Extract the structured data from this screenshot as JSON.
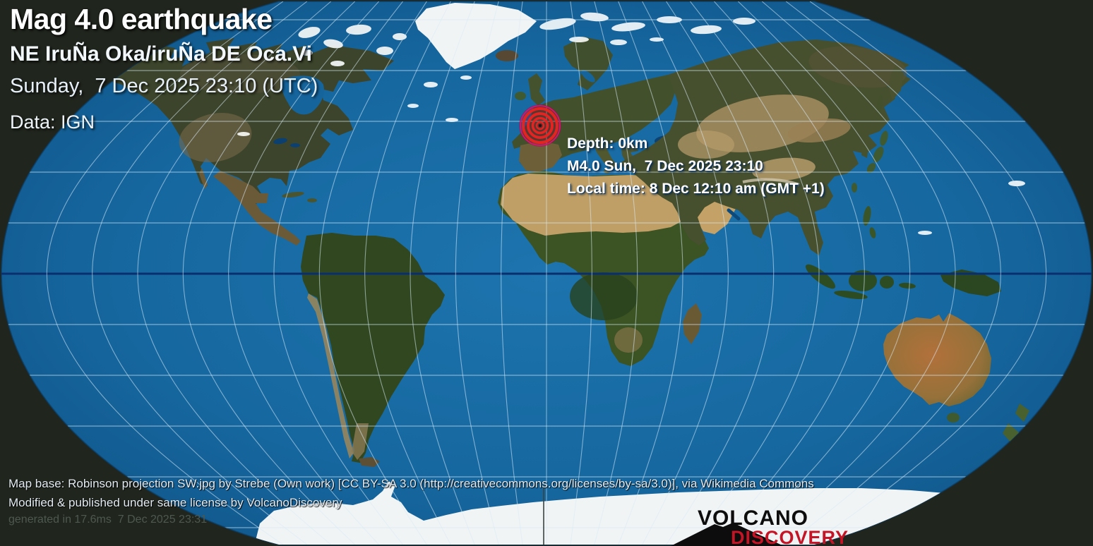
{
  "header": {
    "title": "Mag 4.0 earthquake",
    "subtitle": "NE IruÑa Oka/iruÑa DE Oca.Vi",
    "datetime": "Sunday,  7 Dec 2025 23:10 (UTC)",
    "source": "Data: IGN"
  },
  "quake_info": {
    "depth": "Depth: 0km",
    "magnitude_time": "M4.0 Sun,  7 Dec 2025 23:10",
    "local_time": "Local time: 8 Dec 12:10 am (GMT +1)"
  },
  "attribution": {
    "license_line": "Map base: Robinson projection SW.jpg by Strebe (Own work) [CC BY-SA 3.0 (http://creativecommons.org/licenses/by-sa/3.0)], via Wikimedia Commons",
    "modified_line": "Modified & published under same license by VolcanoDiscovery",
    "generated_line": "generated in 17.6ms  7 Dec 2025 23:31"
  },
  "logo": {
    "line1": "VOLCANO",
    "line2": "DISCOVERY"
  },
  "colors": {
    "outside": "#20251d",
    "ocean": "#16679f",
    "ocean_deep": "#0d4e80",
    "ocean_light": "#1d74ae",
    "grid": "rgba(215,235,248,0.55)",
    "equator": "#0a2f6e",
    "ice": "#f1f4f4",
    "land_green": "#3c452b",
    "land_dark_green": "#31471f",
    "sahara": "#c6a36a",
    "desert": "#ab9164",
    "epicenter_red": "#e52320",
    "epicenter_magenta": "#d6146e",
    "logo_red": "#c41425"
  }
}
